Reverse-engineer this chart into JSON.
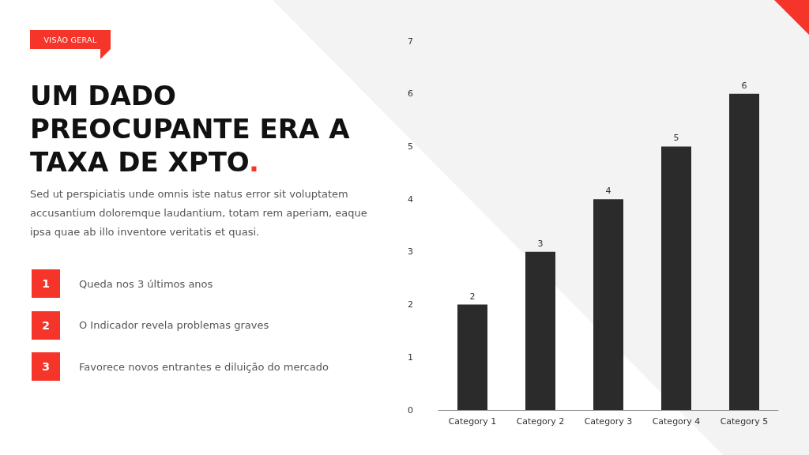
{
  "chart_data": {
    "type": "bar",
    "title": "UM DADO PREOCUPANTE ERA A TAXA DE XPTO.",
    "subtitle": "Sed ut perspiciatis unde omnis iste natus error sit voluptatem accusantium doloremque laudantium, totam rem aperiam, eaque ipsa quae ab illo inventore veritatis et quasi.",
    "annotations": [
      "VISÃO GERAL",
      "1",
      "Queda nos 3 últimos anos",
      "2",
      "O Indicador revela problemas graves",
      "3",
      "Favorece novos entrantes e diluição do mercado"
    ],
    "categories": [
      "Category 1",
      "Category 2",
      "Category 3",
      "Category 4",
      "Category 5"
    ],
    "values": [
      2,
      3,
      4,
      5,
      6
    ],
    "color": "#2b2b2b",
    "ylim": [
      0,
      7
    ],
    "yticks": [
      0,
      1,
      2,
      3,
      4,
      5,
      6,
      7
    ],
    "grid": false,
    "data_labels": true
  }
}
